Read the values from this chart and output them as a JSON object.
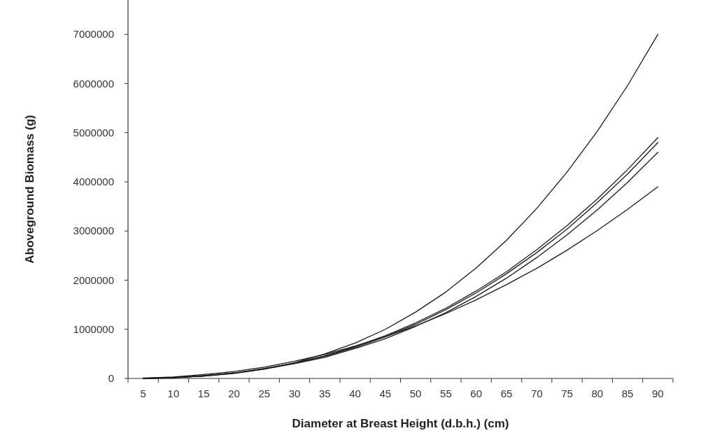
{
  "chart_data": {
    "type": "line",
    "xlabel": "Diameter at Breast Height (d.b.h.) (cm)",
    "ylabel": "Aboveground Biomass (g)",
    "categories": [
      "5",
      "10",
      "15",
      "20",
      "25",
      "30",
      "35",
      "40",
      "45",
      "50",
      "55",
      "60",
      "65",
      "70",
      "75",
      "80",
      "85",
      "90"
    ],
    "ylim": [
      0,
      7700000
    ],
    "yticks": [
      0,
      1000000,
      2000000,
      3000000,
      4000000,
      5000000,
      6000000,
      7000000
    ],
    "grid": false,
    "marker": "none",
    "line_style": "solid",
    "series": [
      {
        "color": "#1a1a1a",
        "values": [
          0,
          10000,
          50000,
          100000,
          190000,
          320000,
          500000,
          720000,
          1000000,
          1350000,
          1760000,
          2250000,
          2810000,
          3460000,
          4200000,
          5030000,
          5960000,
          7000000
        ]
      },
      {
        "color": "#1a1a1a",
        "values": [
          0,
          20000,
          60000,
          110000,
          200000,
          310000,
          460000,
          650000,
          870000,
          1130000,
          1430000,
          1780000,
          2170000,
          2620000,
          3110000,
          3650000,
          4250000,
          4900000
        ]
      },
      {
        "color": "#1a1a1a",
        "values": [
          0,
          20000,
          50000,
          110000,
          200000,
          310000,
          450000,
          630000,
          850000,
          1100000,
          1400000,
          1740000,
          2130000,
          2560000,
          3040000,
          3580000,
          4160000,
          4800000
        ]
      },
      {
        "color": "#1a1a1a",
        "values": [
          0,
          20000,
          50000,
          110000,
          190000,
          300000,
          430000,
          610000,
          810000,
          1060000,
          1340000,
          1670000,
          2040000,
          2460000,
          2920000,
          3430000,
          3990000,
          4600000
        ]
      },
      {
        "color": "#1a1a1a",
        "values": [
          10000,
          30000,
          80000,
          140000,
          230000,
          350000,
          490000,
          660000,
          850000,
          1070000,
          1320000,
          1600000,
          1910000,
          2240000,
          2610000,
          3010000,
          3440000,
          3900000
        ]
      }
    ]
  }
}
